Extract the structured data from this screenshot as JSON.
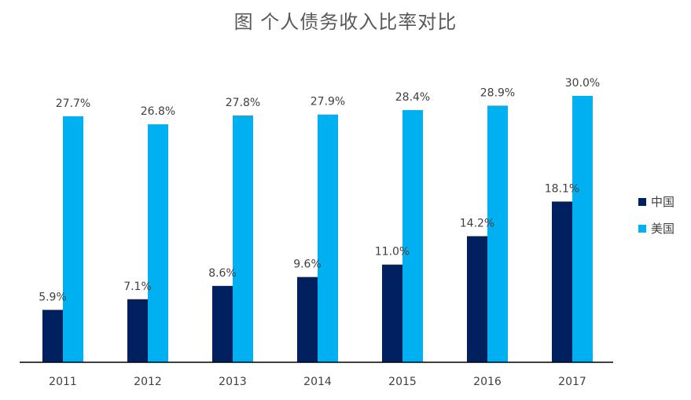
{
  "chart_data": {
    "type": "bar",
    "title": "图 个人债务收入比率对比",
    "categories": [
      "2011",
      "2012",
      "2013",
      "2014",
      "2015",
      "2016",
      "2017"
    ],
    "series": [
      {
        "name": "中国",
        "color": "#002060",
        "values": [
          5.9,
          7.1,
          8.6,
          9.6,
          11.0,
          14.2,
          18.1
        ],
        "labels": [
          "5.9%",
          "7.1%",
          "8.6%",
          "9.6%",
          "11.0%",
          "14.2%",
          "18.1%"
        ]
      },
      {
        "name": "美国",
        "color": "#00B0F0",
        "values": [
          27.7,
          26.8,
          27.8,
          27.9,
          28.4,
          28.9,
          30.0
        ],
        "labels": [
          "27.7%",
          "26.8%",
          "27.8%",
          "27.9%",
          "28.4%",
          "28.9%",
          "30.0%"
        ]
      }
    ],
    "ylim": [
      0,
      30.0
    ],
    "grid": false,
    "legend_position": "right"
  }
}
